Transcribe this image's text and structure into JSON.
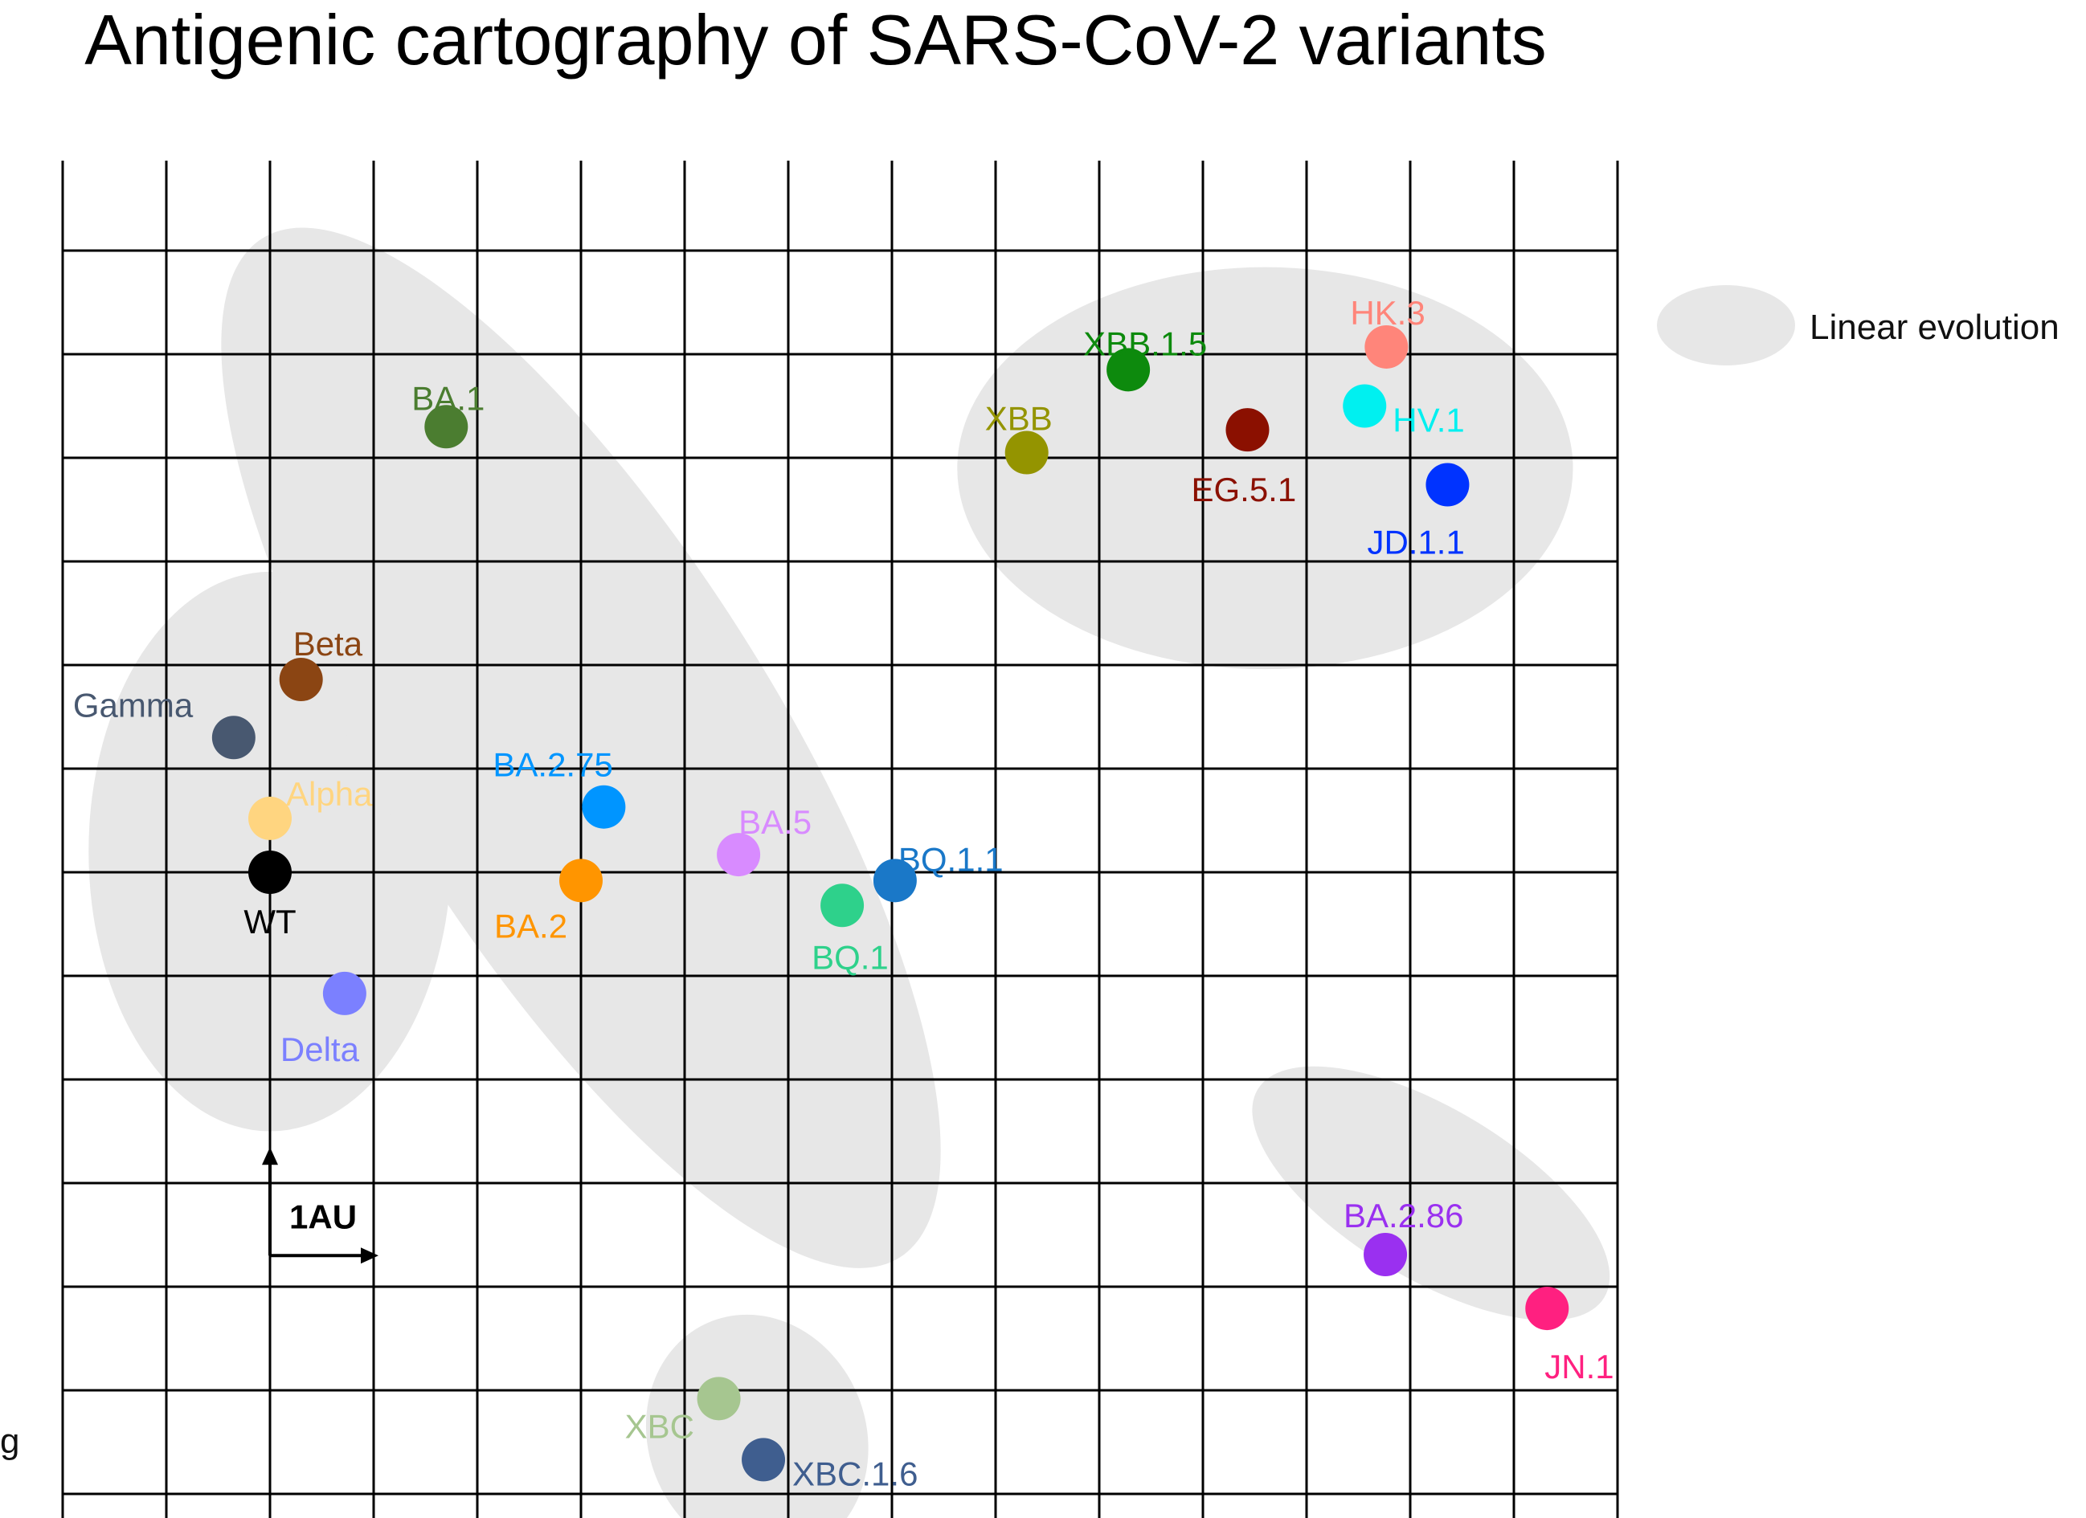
{
  "title": "Antigenic cartography of SARS-CoV-2 variants",
  "edge_glyph": "g",
  "chart_data": {
    "type": "scatter",
    "title": "Antigenic cartography of SARS-CoV-2 variants",
    "grid": true,
    "xlim": [
      0,
      15
    ],
    "ylim": [
      0,
      13.1
    ],
    "scale_bar": {
      "label": "1AU",
      "length": 1
    },
    "legend": {
      "label": "Linear evolution",
      "placement": "right",
      "color": "#e7e7e7"
    },
    "groups": [
      {
        "id": "early",
        "center": [
          2.0,
          6.2
        ],
        "radii": [
          1.75,
          2.7
        ],
        "rotation": 0
      },
      {
        "id": "omicron",
        "center": [
          5.0,
          7.2
        ],
        "radii": [
          1.9,
          5.8
        ],
        "rotation": -32
      },
      {
        "id": "xbb",
        "center": [
          11.6,
          9.9
        ],
        "radii": [
          2.97,
          1.94
        ],
        "rotation": 0
      },
      {
        "id": "ba286",
        "center": [
          13.2,
          2.9
        ],
        "radii": [
          1.95,
          0.82
        ],
        "rotation": 31
      },
      {
        "id": "xbc",
        "center": [
          6.7,
          0.55
        ],
        "radii": [
          1.05,
          1.2
        ],
        "rotation": -22
      }
    ],
    "points": [
      {
        "name": "WT",
        "x": 2.0,
        "y": 6.0,
        "color": "#000000"
      },
      {
        "name": "Alpha",
        "x": 2.0,
        "y": 6.52,
        "color": "#ffd580"
      },
      {
        "name": "Beta",
        "x": 2.3,
        "y": 7.86,
        "color": "#8b4513"
      },
      {
        "name": "Gamma",
        "x": 1.65,
        "y": 7.3,
        "color": "#485870"
      },
      {
        "name": "Delta",
        "x": 2.72,
        "y": 4.83,
        "color": "#7b80ff"
      },
      {
        "name": "BA.1",
        "x": 3.7,
        "y": 10.3,
        "color": "#4b7d30"
      },
      {
        "name": "BA.2",
        "x": 5.0,
        "y": 5.92,
        "color": "#ff9500"
      },
      {
        "name": "BA.2.75",
        "x": 5.22,
        "y": 6.63,
        "color": "#0095ff"
      },
      {
        "name": "BA.5",
        "x": 6.52,
        "y": 6.17,
        "color": "#d88bff"
      },
      {
        "name": "BQ.1",
        "x": 7.52,
        "y": 5.68,
        "color": "#2ed18b"
      },
      {
        "name": "BQ.1.1",
        "x": 8.03,
        "y": 5.92,
        "color": "#1a78c8"
      },
      {
        "name": "XBB",
        "x": 9.3,
        "y": 10.05,
        "color": "#949400"
      },
      {
        "name": "XBB.1.5",
        "x": 10.28,
        "y": 10.85,
        "color": "#0d8a0d"
      },
      {
        "name": "EG.5.1",
        "x": 11.43,
        "y": 10.27,
        "color": "#8b1000"
      },
      {
        "name": "HK.3",
        "x": 12.77,
        "y": 11.07,
        "color": "#ff857a"
      },
      {
        "name": "HV.1",
        "x": 12.56,
        "y": 10.5,
        "color": "#00f0f0"
      },
      {
        "name": "JD.1.1",
        "x": 13.36,
        "y": 9.74,
        "color": "#0033ff"
      },
      {
        "name": "BA.2.86",
        "x": 12.76,
        "y": 2.31,
        "color": "#9a30f0"
      },
      {
        "name": "JN.1",
        "x": 14.32,
        "y": 1.79,
        "color": "#ff2080"
      },
      {
        "name": "XBC",
        "x": 6.33,
        "y": 0.92,
        "color": "#a6c690"
      },
      {
        "name": "XBC.1.6",
        "x": 6.76,
        "y": 0.33,
        "color": "#3f5e8f"
      }
    ]
  }
}
